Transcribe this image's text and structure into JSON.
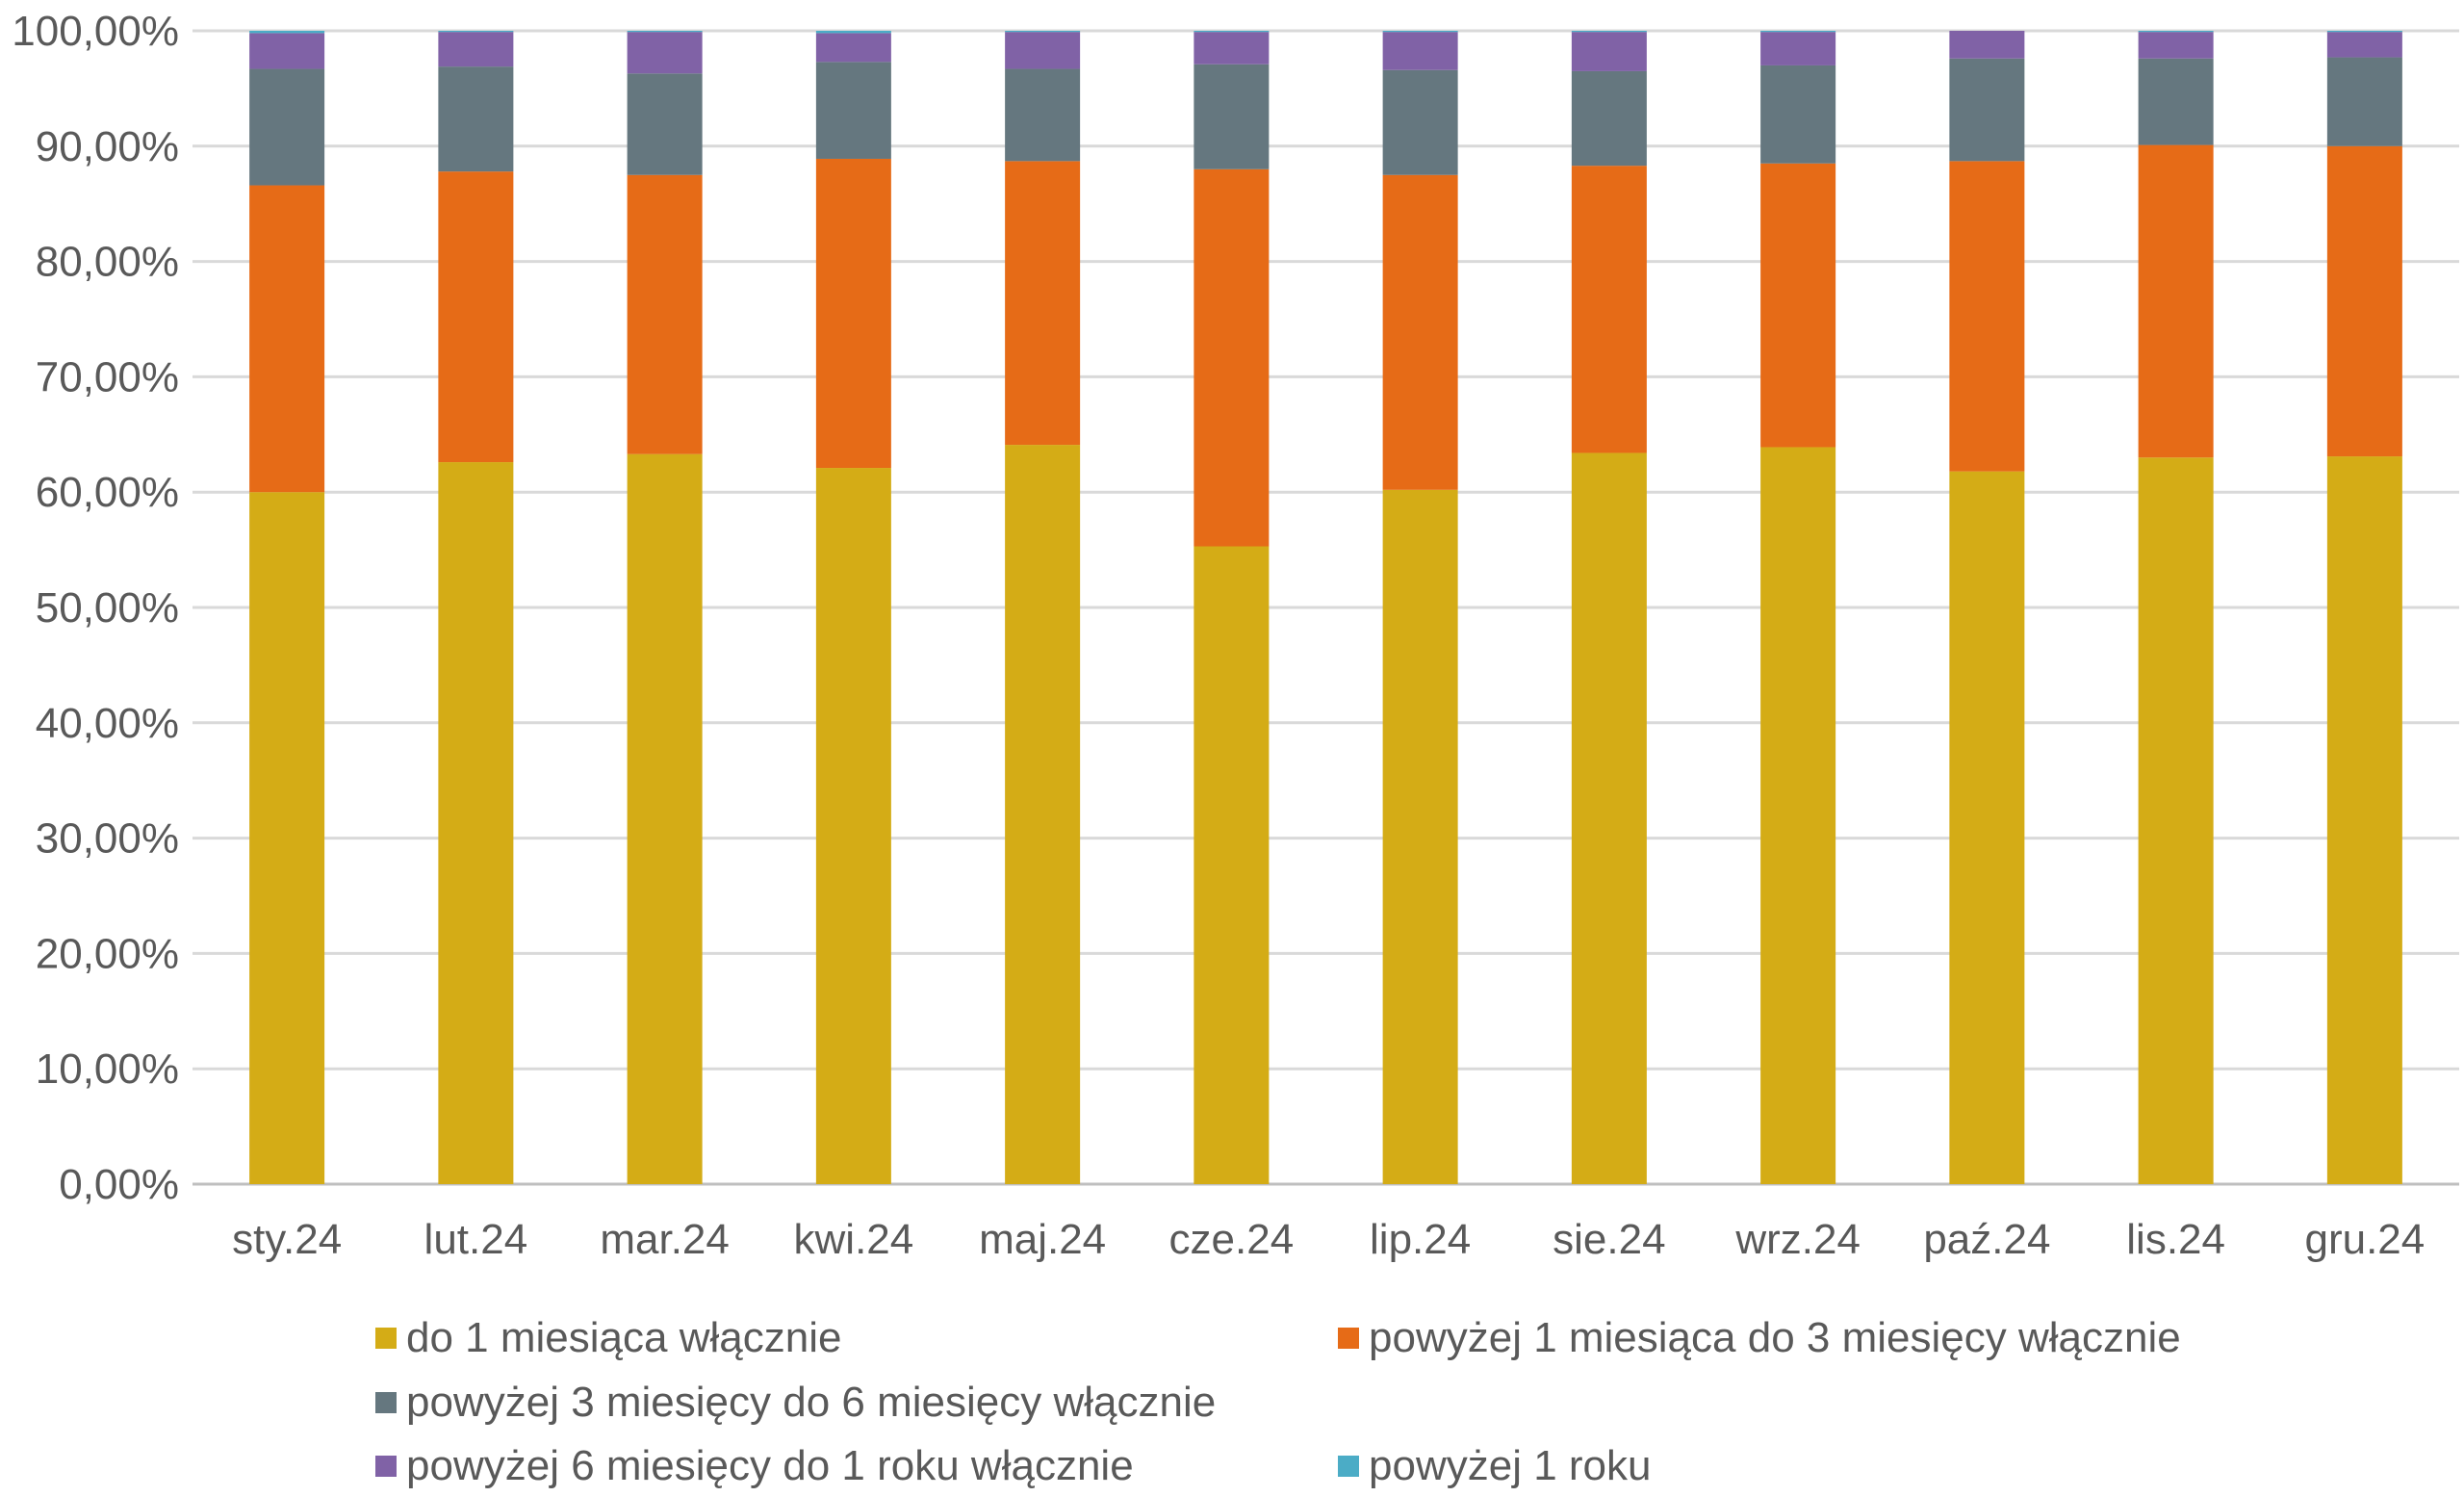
{
  "chart_data": {
    "type": "bar",
    "stacked": true,
    "title": "",
    "xlabel": "",
    "ylabel": "",
    "ylim": [
      0,
      100
    ],
    "y_ticks": [
      "0,00%",
      "10,00%",
      "20,00%",
      "30,00%",
      "40,00%",
      "50,00%",
      "60,00%",
      "70,00%",
      "80,00%",
      "90,00%",
      "100,00%"
    ],
    "grid": true,
    "legend_position": "bottom",
    "categories": [
      "sty.24",
      "lut.24",
      "mar.24",
      "kwi.24",
      "maj.24",
      "cze.24",
      "lip.24",
      "sie.24",
      "wrz.24",
      "paź.24",
      "lis.24",
      "gru.24"
    ],
    "series": [
      {
        "name": "do 1 miesiąca włącznie",
        "color": "#D4AC16",
        "values": [
          60.0,
          62.6,
          63.3,
          62.1,
          64.1,
          55.3,
          60.2,
          63.4,
          63.9,
          61.8,
          63.0,
          63.1
        ]
      },
      {
        "name": "powyżej 1 miesiąca do 3 miesięcy włącznie",
        "color": "#E66B17",
        "values": [
          26.6,
          25.2,
          24.2,
          26.8,
          24.6,
          32.7,
          27.3,
          24.9,
          24.6,
          26.9,
          27.1,
          26.9
        ]
      },
      {
        "name": "powyżej 3 miesięcy do 6 miesięcy włącznie",
        "color": "#65777F",
        "values": [
          10.1,
          9.1,
          8.8,
          8.4,
          8.0,
          9.1,
          9.1,
          8.2,
          8.5,
          8.9,
          7.5,
          7.7
        ]
      },
      {
        "name": "powyżej 6 miesięcy do 1 roku włącznie",
        "color": "#8062A6",
        "values": [
          3.1,
          3.0,
          3.6,
          2.5,
          3.2,
          2.8,
          3.3,
          3.4,
          2.9,
          2.4,
          2.3,
          2.2
        ]
      },
      {
        "name": "powyżej 1 roku",
        "color": "#4BACC6",
        "values": [
          0.2,
          0.1,
          0.1,
          0.2,
          0.1,
          0.1,
          0.1,
          0.1,
          0.1,
          0.0,
          0.1,
          0.1
        ]
      }
    ]
  }
}
